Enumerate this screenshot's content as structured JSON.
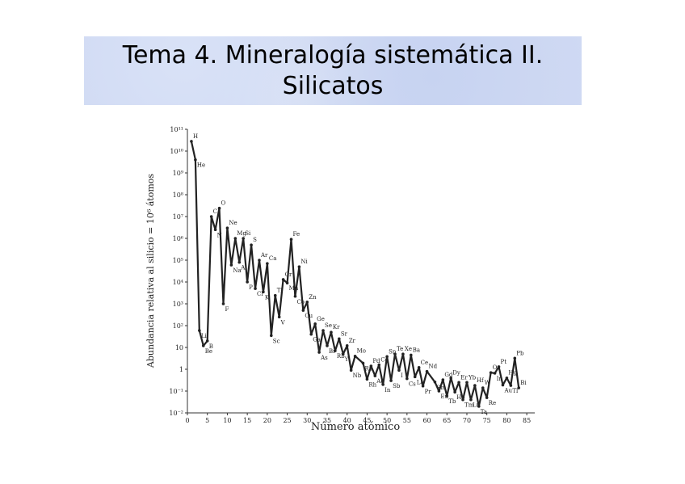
{
  "title_lines": [
    "Tema 4. Mineralogía sistemática II.",
    "Silicatos"
  ],
  "chart_data": {
    "type": "line",
    "log_y": true,
    "color": "#222",
    "xlabel": "Número atómico",
    "ylabel": "Abundancia relativa al silicio = 10⁶ átomos",
    "xlim": [
      0,
      87
    ],
    "xticks": [
      0,
      5,
      10,
      15,
      20,
      25,
      30,
      35,
      40,
      45,
      50,
      55,
      60,
      65,
      70,
      75,
      80,
      85
    ],
    "ylim": [
      0.01,
      100000000000
    ],
    "yticks": [
      {
        "value": 0.01,
        "label": "10⁻²"
      },
      {
        "value": 0.1,
        "label": "10⁻¹"
      },
      1,
      10,
      {
        "value": 100,
        "label": "10²"
      },
      {
        "value": 1000,
        "label": "10³"
      },
      {
        "value": 10000,
        "label": "10⁴"
      },
      {
        "value": 100000,
        "label": "10⁵"
      },
      {
        "value": 1000000,
        "label": "10⁶"
      },
      {
        "value": 10000000,
        "label": "10⁷"
      },
      {
        "value": 100000000,
        "label": "10⁸"
      },
      {
        "value": 1000000000,
        "label": "10⁹"
      },
      {
        "value": 10000000000,
        "label": "10¹⁰"
      },
      {
        "value": 100000000000,
        "label": "10¹¹"
      }
    ],
    "x": [
      1,
      2,
      3,
      4,
      5,
      6,
      7,
      8,
      9,
      10,
      11,
      12,
      13,
      14,
      15,
      16,
      17,
      18,
      19,
      20,
      21,
      22,
      23,
      24,
      25,
      26,
      27,
      28,
      29,
      30,
      31,
      32,
      33,
      34,
      35,
      36,
      37,
      38,
      39,
      40,
      41,
      42,
      44,
      45,
      46,
      47,
      48,
      49,
      50,
      51,
      52,
      53,
      54,
      55,
      56,
      57,
      58,
      59,
      60,
      62,
      63,
      64,
      65,
      66,
      67,
      68,
      69,
      70,
      71,
      72,
      73,
      74,
      75,
      76,
      77,
      78,
      79,
      80,
      81,
      82,
      83
    ],
    "labels": [
      "H",
      "He",
      "Li",
      "Be",
      "B",
      "C",
      "N",
      "O",
      "F",
      "Ne",
      "Na",
      "Mg",
      "Al",
      "Si",
      "P",
      "S",
      "Cl",
      "Ar",
      "K",
      "Ca",
      "Sc",
      "Ti",
      "V",
      "Cr",
      "Mn",
      "Fe",
      "Co",
      "Ni",
      "Cu",
      "Zn",
      "Ga",
      "Ge",
      "As",
      "Se",
      "Br",
      "Kr",
      "Rb",
      "Sr",
      "Y",
      "Zr",
      "Nb",
      "Mo",
      "Ru",
      "Rh",
      "Pd",
      "Ag",
      "Cd",
      "In",
      "Sn",
      "Sb",
      "Te",
      "I",
      "Xe",
      "Cs",
      "Ba",
      "La",
      "Ce",
      "Pr",
      "Nd",
      "Sm",
      "Eu",
      "Gd",
      "Tb",
      "Dy",
      "Ho",
      "Er",
      "Tm",
      "Yb",
      "Lu",
      "Hf",
      "Ta",
      "W",
      "Re",
      "Os",
      "Ir",
      "Pt",
      "Au",
      "Hg",
      "Tl",
      "Pb",
      "Bi"
    ],
    "values": [
      28000000000,
      4000000000,
      60,
      12,
      20,
      10000000,
      2500000,
      24000000,
      1000,
      3000000,
      60000,
      1000000,
      80000,
      1000000,
      10000,
      500000,
      5000,
      100000,
      3500,
      70000,
      35,
      2400,
      250,
      13000,
      9000,
      900000,
      2200,
      50000,
      500,
      1200,
      40,
      120,
      6,
      60,
      12,
      50,
      7,
      25,
      5,
      12,
      0.9,
      4,
      1.9,
      0.35,
      1.4,
      0.5,
      1.6,
      0.2,
      3.8,
      0.3,
      5,
      0.9,
      5,
      0.37,
      4.5,
      0.45,
      1.2,
      0.17,
      0.8,
      0.26,
      0.1,
      0.33,
      0.06,
      0.4,
      0.09,
      0.25,
      0.04,
      0.25,
      0.04,
      0.18,
      0.02,
      0.14,
      0.05,
      0.7,
      0.66,
      1.3,
      0.19,
      0.4,
      0.18,
      3.2,
      0.14
    ]
  }
}
